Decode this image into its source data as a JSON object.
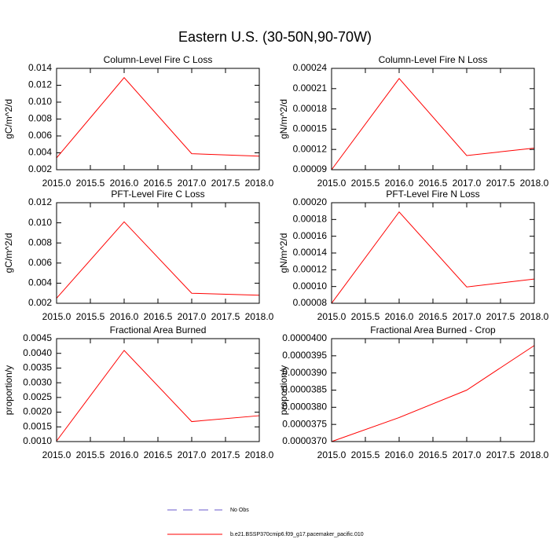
{
  "title": "Eastern U.S. (30-50N,90-70W)",
  "legend": [
    {
      "label": "No Obs",
      "color": "#6a5acd",
      "dash": true
    },
    {
      "label": "b.e21.BSSP370cmip6.f09_g17.pacemaker_pacific.010",
      "color": "#ff0000",
      "dash": false
    }
  ],
  "chart_data": [
    {
      "type": "line",
      "title": "Column-Level Fire C Loss",
      "ylabel": "gC/m^2/d",
      "x": [
        2015,
        2016,
        2017,
        2018
      ],
      "xlim": [
        2015,
        2018
      ],
      "xticks": [
        {
          "value": 2015,
          "label": "2015.0"
        },
        {
          "value": 2015.5,
          "label": "2015.5"
        },
        {
          "value": 2016,
          "label": "2016.0"
        },
        {
          "value": 2016.5,
          "label": "2016.5"
        },
        {
          "value": 2017,
          "label": "2017.0"
        },
        {
          "value": 2017.5,
          "label": "2017.5"
        },
        {
          "value": 2018,
          "label": "2018.0"
        }
      ],
      "ylim": [
        0.002,
        0.014
      ],
      "yticks": [
        0.002,
        0.004,
        0.006,
        0.008,
        {
          "value": 0.01,
          "label": "0.010"
        },
        0.012,
        0.014
      ],
      "series": [
        {
          "color": "#ff0000",
          "values": [
            0.0034,
            0.0129,
            0.0039,
            0.0036
          ]
        }
      ]
    },
    {
      "type": "line",
      "title": "Column-Level Fire N Loss",
      "ylabel": "gN/m^2/d",
      "x": [
        2015,
        2016,
        2017,
        2018
      ],
      "xlim": [
        2015,
        2018
      ],
      "xticks": [
        {
          "value": 2015,
          "label": "2015.0"
        },
        {
          "value": 2015.5,
          "label": "2015.5"
        },
        {
          "value": 2016,
          "label": "2016.0"
        },
        {
          "value": 2016.5,
          "label": "2016.5"
        },
        {
          "value": 2017,
          "label": "2017.0"
        },
        {
          "value": 2017.5,
          "label": "2017.5"
        },
        {
          "value": 2018,
          "label": "2018.0"
        }
      ],
      "ylim": [
        9e-05,
        0.00024
      ],
      "yticks": [
        9e-05,
        0.00012,
        0.00015,
        0.00018,
        0.00021,
        0.00024
      ],
      "series": [
        {
          "color": "#ff0000",
          "values": [
            9e-05,
            0.000225,
            0.000111,
            0.000122
          ]
        }
      ]
    },
    {
      "type": "line",
      "title": "PFT-Level Fire C Loss",
      "ylabel": "gC/m^2/d",
      "x": [
        2015,
        2016,
        2017,
        2018
      ],
      "xlim": [
        2015,
        2018
      ],
      "xticks": [
        {
          "value": 2015,
          "label": "2015.0"
        },
        {
          "value": 2015.5,
          "label": "2015.5"
        },
        {
          "value": 2016,
          "label": "2016.0"
        },
        {
          "value": 2016.5,
          "label": "2016.5"
        },
        {
          "value": 2017,
          "label": "2017.0"
        },
        {
          "value": 2017.5,
          "label": "2017.5"
        },
        {
          "value": 2018,
          "label": "2018.0"
        }
      ],
      "ylim": [
        0.002,
        0.012
      ],
      "yticks": [
        0.002,
        0.004,
        0.006,
        0.008,
        {
          "value": 0.01,
          "label": "0.010"
        },
        0.012
      ],
      "series": [
        {
          "color": "#ff0000",
          "values": [
            0.0025,
            0.0101,
            0.003,
            0.0028
          ]
        }
      ]
    },
    {
      "type": "line",
      "title": "PFT-Level Fire N Loss",
      "ylabel": "gN/m^2/d",
      "x": [
        2015,
        2016,
        2017,
        2018
      ],
      "xlim": [
        2015,
        2018
      ],
      "xticks": [
        {
          "value": 2015,
          "label": "2015.0"
        },
        {
          "value": 2015.5,
          "label": "2015.5"
        },
        {
          "value": 2016,
          "label": "2016.0"
        },
        {
          "value": 2016.5,
          "label": "2016.5"
        },
        {
          "value": 2017,
          "label": "2017.0"
        },
        {
          "value": 2017.5,
          "label": "2017.5"
        },
        {
          "value": 2018,
          "label": "2018.0"
        }
      ],
      "ylim": [
        8e-05,
        0.0002
      ],
      "yticks": [
        8e-05,
        {
          "value": 0.0001,
          "label": "0.00010"
        },
        0.00012,
        0.00014,
        0.00016,
        0.00018,
        {
          "value": 0.0002,
          "label": "0.00020"
        }
      ],
      "series": [
        {
          "color": "#ff0000",
          "values": [
            8e-05,
            0.000189,
            9.95e-05,
            0.000109
          ]
        }
      ]
    },
    {
      "type": "line",
      "title": "Fractional Area Burned",
      "ylabel": "proportion/y",
      "x": [
        2015,
        2016,
        2017,
        2018
      ],
      "xlim": [
        2015,
        2018
      ],
      "xticks": [
        {
          "value": 2015,
          "label": "2015.0"
        },
        {
          "value": 2015.5,
          "label": "2015.5"
        },
        {
          "value": 2016,
          "label": "2016.0"
        },
        {
          "value": 2016.5,
          "label": "2016.5"
        },
        {
          "value": 2017,
          "label": "2017.0"
        },
        {
          "value": 2017.5,
          "label": "2017.5"
        },
        {
          "value": 2018,
          "label": "2018.0"
        }
      ],
      "ylim": [
        0.001,
        0.0045
      ],
      "yticks": [
        {
          "value": 0.001,
          "label": "0.0010"
        },
        0.0015,
        {
          "value": 0.002,
          "label": "0.0020"
        },
        0.0025,
        {
          "value": 0.003,
          "label": "0.0030"
        },
        0.0035,
        {
          "value": 0.004,
          "label": "0.0040"
        },
        0.0045
      ],
      "series": [
        {
          "color": "#ff0000",
          "values": [
            0.00102,
            0.0041,
            0.00168,
            0.00188
          ]
        }
      ]
    },
    {
      "type": "line",
      "title": "Fractional Area Burned - Crop",
      "ylabel": "proportion/y",
      "x": [
        2015,
        2016,
        2017,
        2018
      ],
      "xlim": [
        2015,
        2018
      ],
      "xticks": [
        {
          "value": 2015,
          "label": "2015.0"
        },
        {
          "value": 2015.5,
          "label": "2015.5"
        },
        {
          "value": 2016,
          "label": "2016.0"
        },
        {
          "value": 2016.5,
          "label": "2016.5"
        },
        {
          "value": 2017,
          "label": "2017.0"
        },
        {
          "value": 2017.5,
          "label": "2017.5"
        },
        {
          "value": 2018,
          "label": "2018.0"
        }
      ],
      "ylim": [
        3.7e-05,
        4e-05
      ],
      "yticks": [
        {
          "value": 3.7e-05,
          "label": "0.0000370"
        },
        {
          "value": 3.75e-05,
          "label": "0.0000375"
        },
        {
          "value": 3.8e-05,
          "label": "0.0000380"
        },
        {
          "value": 3.85e-05,
          "label": "0.0000385"
        },
        {
          "value": 3.9e-05,
          "label": "0.0000390"
        },
        {
          "value": 3.95e-05,
          "label": "0.0000395"
        },
        {
          "value": 4e-05,
          "label": "0.0000400"
        }
      ],
      "series": [
        {
          "color": "#ff0000",
          "values": [
            3.7e-05,
            3.77e-05,
            3.85e-05,
            3.98e-05
          ]
        }
      ]
    }
  ]
}
